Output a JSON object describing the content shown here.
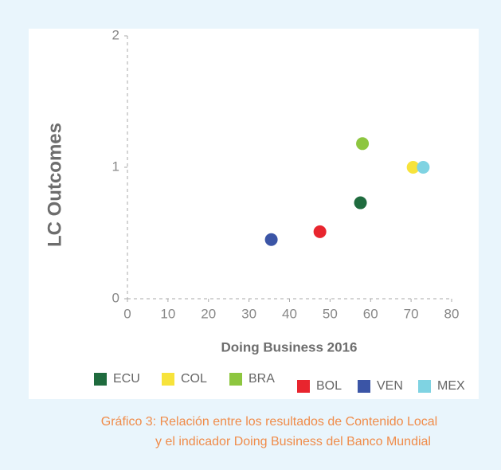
{
  "chart_data": {
    "type": "scatter",
    "xlabel": "Doing Business 2016",
    "ylabel": "LC Outcomes",
    "xlim": [
      0,
      80
    ],
    "xticks": [
      0,
      10,
      20,
      30,
      40,
      50,
      60,
      70,
      80
    ],
    "ylim": [
      0,
      2
    ],
    "yticks": [
      0,
      1,
      2
    ],
    "series": [
      {
        "name": "ECU",
        "color": "#1f6b3e",
        "x": [
          57.5
        ],
        "values": [
          0.73
        ]
      },
      {
        "name": "COL",
        "color": "#f7e33b",
        "x": [
          70.5
        ],
        "values": [
          1.0
        ]
      },
      {
        "name": "BRA",
        "color": "#8dc63f",
        "x": [
          58
        ],
        "values": [
          1.18
        ]
      },
      {
        "name": "BOL",
        "color": "#e8252e",
        "x": [
          47.5
        ],
        "values": [
          0.51
        ]
      },
      {
        "name": "VEN",
        "color": "#3b55a6",
        "x": [
          35.5
        ],
        "values": [
          0.45
        ]
      },
      {
        "name": "MEX",
        "color": "#7fd3e2",
        "x": [
          73
        ],
        "values": [
          1.0
        ]
      }
    ]
  },
  "caption": [
    "Gráfico 3: Relación entre los  resultados de Contenido Local",
    "y el indicador Doing Business del Banco Mundial"
  ]
}
